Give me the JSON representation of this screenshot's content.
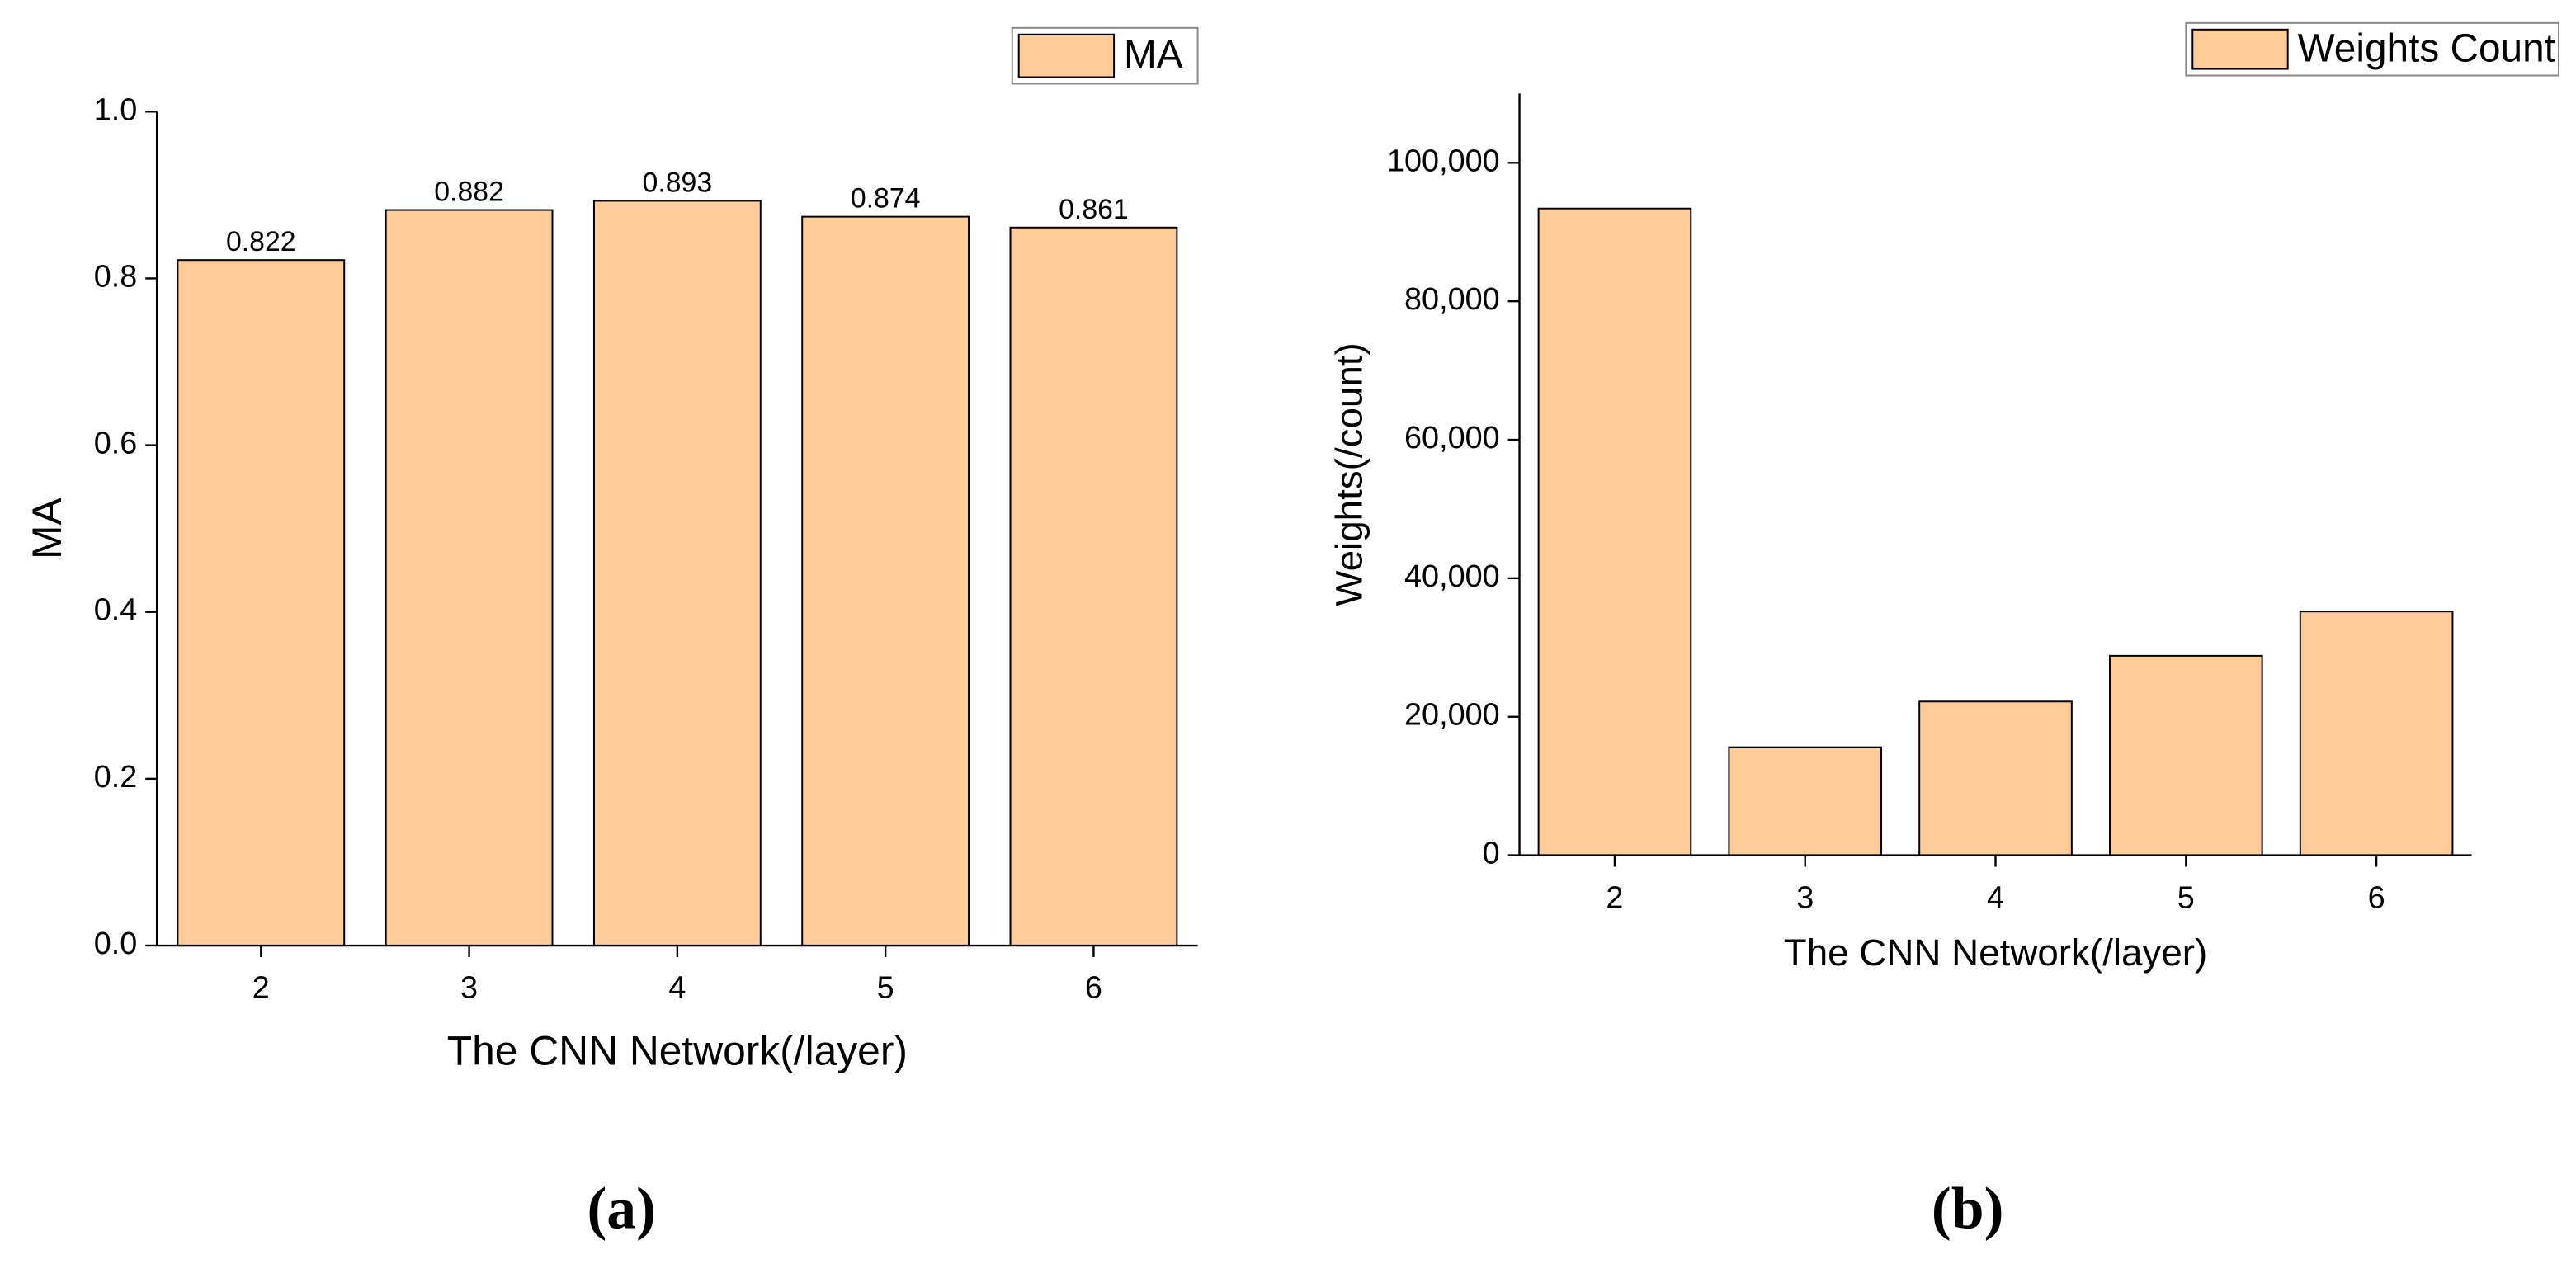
{
  "chart_data": [
    {
      "type": "bar",
      "panel_label": "(a)",
      "xlabel": "The CNN Network(/layer)",
      "ylabel": "MA",
      "categories": [
        "2",
        "3",
        "4",
        "5",
        "6"
      ],
      "series": [
        {
          "name": "MA",
          "color": "#ffcc99",
          "values": [
            0.822,
            0.882,
            0.893,
            0.874,
            0.861
          ]
        }
      ],
      "ylim": [
        0,
        1
      ],
      "yticks": [
        {
          "value": 0,
          "label": "0.0"
        },
        0.2,
        0.4,
        0.6,
        0.8,
        {
          "value": 1,
          "label": "1.0"
        }
      ],
      "grid": false,
      "data_labels": true,
      "legend": "top-right"
    },
    {
      "type": "bar",
      "panel_label": "(b)",
      "xlabel": "The CNN Network(/layer)",
      "ylabel": "Weights(/count)",
      "categories": [
        "2",
        "3",
        "4",
        "5",
        "6"
      ],
      "series": [
        {
          "name": "Weights Count",
          "color": "#ffcc99",
          "values": [
            93400,
            15600,
            22200,
            28800,
            35200
          ]
        }
      ],
      "ylim": [
        0,
        110000
      ],
      "yticks": [
        0,
        {
          "value": 20000,
          "label": "20,000"
        },
        {
          "value": 40000,
          "label": "40,000"
        },
        {
          "value": 60000,
          "label": "60,000"
        },
        {
          "value": 80000,
          "label": "80,000"
        },
        {
          "value": 100000,
          "label": "100,000"
        }
      ],
      "grid": false,
      "data_labels": false,
      "legend": "top-right"
    }
  ]
}
